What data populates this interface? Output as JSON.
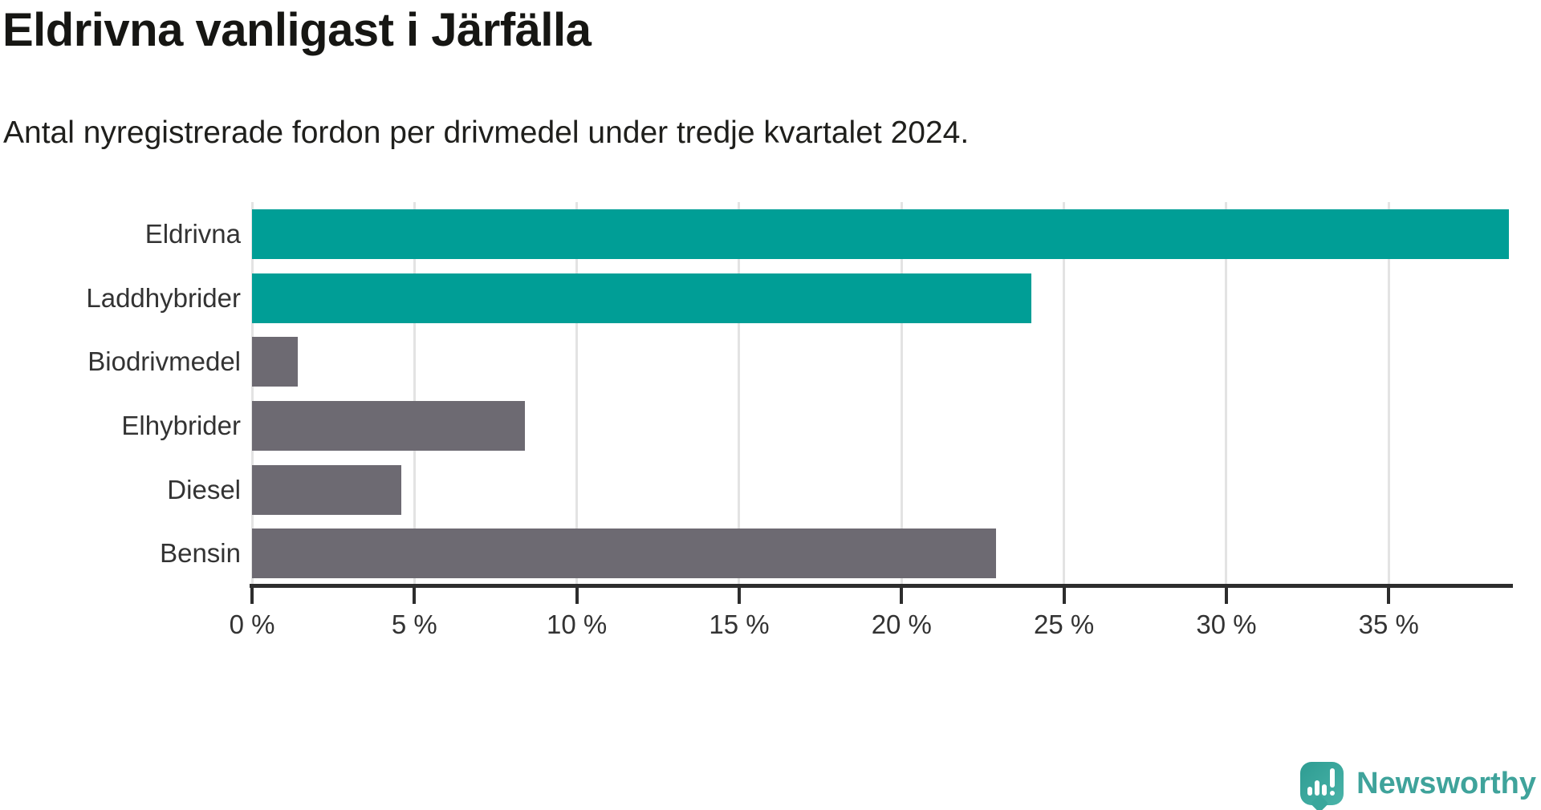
{
  "title": "Eldrivna vanligast i Järfälla",
  "subtitle": "Antal nyregistrerade fordon per drivmedel under tredje kvartalet 2024.",
  "chart_data": {
    "type": "bar",
    "orientation": "horizontal",
    "title": "Eldrivna vanligast i Järfälla",
    "subtitle": "Antal nyregistrerade fordon per drivmedel under tredje kvartalet 2024.",
    "categories": [
      "Eldrivna",
      "Laddhybrider",
      "Biodrivmedel",
      "Elhybrider",
      "Diesel",
      "Bensin"
    ],
    "values": [
      38.7,
      24.0,
      1.4,
      8.4,
      4.6,
      22.9
    ],
    "unit": "%",
    "bar_colors": [
      "#009e96",
      "#009e96",
      "#6d6a72",
      "#6d6a72",
      "#6d6a72",
      "#6d6a72"
    ],
    "highlight_color": "#009e96",
    "default_color": "#6d6a72",
    "xlim": [
      0,
      38.7
    ],
    "xticks": [
      0,
      5,
      10,
      15,
      20,
      25,
      30,
      35
    ],
    "xtick_labels": [
      "0 %",
      "5 %",
      "10 %",
      "15 %",
      "20 %",
      "25 %",
      "30 %",
      "35 %"
    ],
    "grid": true,
    "legend": false,
    "xlabel": "",
    "ylabel": ""
  },
  "branding": {
    "logo_text": "Newsworthy",
    "logo_color": "#3fa39b",
    "logo_icon": "newsworthy-pin-chart-icon"
  }
}
